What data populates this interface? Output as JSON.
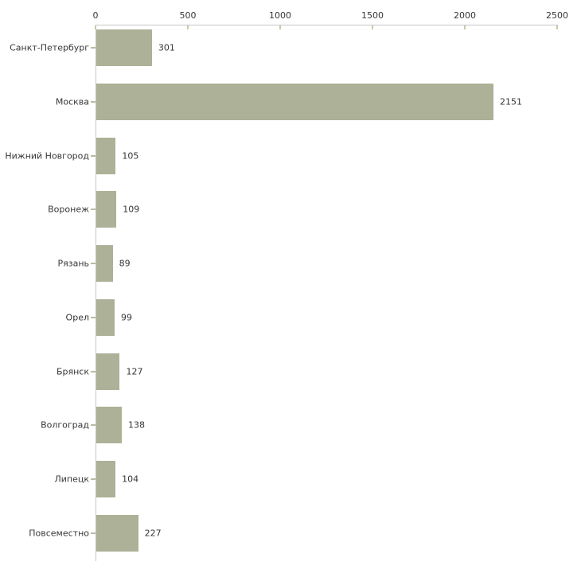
{
  "chart_data": {
    "type": "bar",
    "orientation": "horizontal",
    "title": "",
    "xlabel": "",
    "ylabel": "",
    "categories": [
      "Санкт-Петербург",
      "Москва",
      "Нижний Новгород",
      "Воронеж",
      "Рязань",
      "Орел",
      "Брянск",
      "Волгоград",
      "Липецк",
      "Повсеместно"
    ],
    "values": [
      301,
      2151,
      105,
      109,
      89,
      99,
      127,
      138,
      104,
      227
    ],
    "value_labels": [
      "301",
      "2151",
      "105",
      "109",
      "89",
      "99",
      "127",
      "138",
      "104",
      "227"
    ],
    "x_ticks": [
      0,
      500,
      1000,
      1500,
      2000,
      2500
    ],
    "x_tick_labels": [
      "0",
      "500",
      "1000",
      "1500",
      "2000",
      "2500"
    ],
    "xlim": [
      0,
      2500
    ],
    "grid": false,
    "legend_position": "none",
    "axis_position": "top-left",
    "colors": {
      "bar": "#acb197",
      "axis_line": "#c5c5c5",
      "x_tick_mark": "#c9cba6",
      "y_tick_mark": "#b8bba2",
      "text": "#363636",
      "background": "#ffffff"
    }
  }
}
